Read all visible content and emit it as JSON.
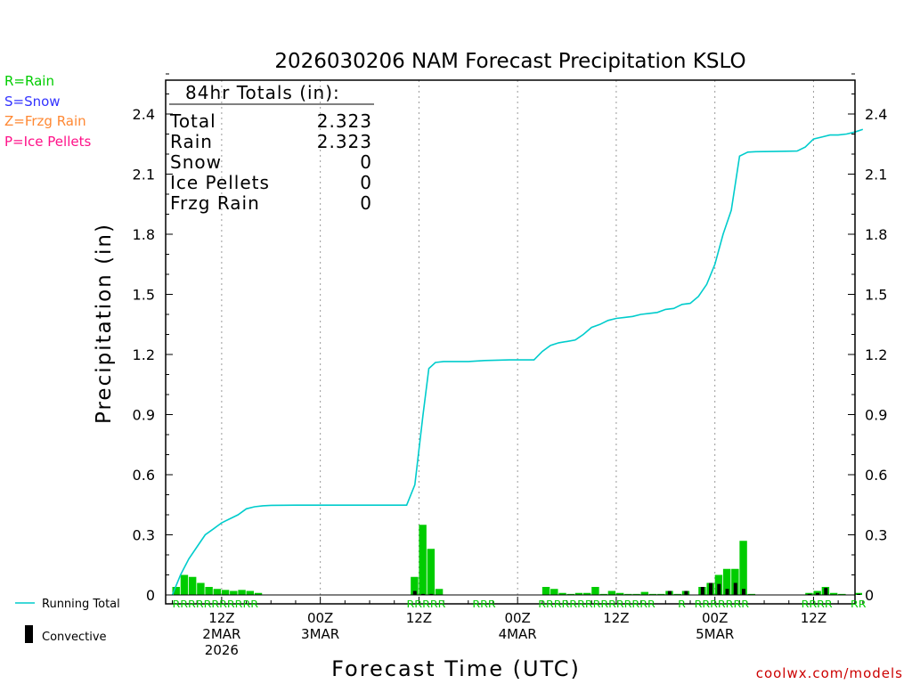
{
  "legend": {
    "rain": "R=Rain",
    "snow": "S=Snow",
    "frzg_rain": "Z=Frzg Rain",
    "ice_pellets": "P=Ice Pellets",
    "running_total": "Running Total",
    "convective": "Convective"
  },
  "totals_box": {
    "heading": "84hr Totals (in):",
    "rows": [
      {
        "label": "Total",
        "value": "2.323"
      },
      {
        "label": "Rain",
        "value": "2.323"
      },
      {
        "label": "Snow",
        "value": "0"
      },
      {
        "label": "Ice Pellets",
        "value": "0"
      },
      {
        "label": "Frzg Rain",
        "value": "0"
      }
    ]
  },
  "credit": "coolwx.com/models",
  "colors": {
    "rain": "#00cc00",
    "snow": "#3333ff",
    "frzg_rain": "#ff8833",
    "ice_pellets": "#ff1188",
    "running_total": "#00cccc",
    "convective": "#000000",
    "credit": "#cc0000"
  },
  "chart_data": {
    "type": "bar",
    "title": "2026030206 NAM Forecast Precipitation KSLO",
    "xlabel": "Forecast Time (UTC)",
    "ylabel": "Precipitation (in)",
    "ylim": [
      -0.04,
      2.55
    ],
    "yticks": [
      0,
      0.3,
      0.6,
      0.9,
      1.2,
      1.5,
      1.8,
      2.1,
      2.4
    ],
    "ytick_labels": [
      "0",
      "0.3",
      "0.6",
      "0.9",
      "1.2",
      "1.5",
      "1.8",
      "2.1",
      "2.4"
    ],
    "xlim_hours": [
      0,
      84
    ],
    "x_ticks": [
      {
        "hour": 6,
        "label": [
          "12Z",
          "2MAR",
          "2026"
        ]
      },
      {
        "hour": 18,
        "label": [
          "00Z",
          "3MAR"
        ]
      },
      {
        "hour": 30,
        "label": [
          "12Z"
        ]
      },
      {
        "hour": 42,
        "label": [
          "00Z",
          "4MAR"
        ]
      },
      {
        "hour": 54,
        "label": [
          "12Z"
        ]
      },
      {
        "hour": 66,
        "label": [
          "00Z",
          "5MAR"
        ]
      },
      {
        "hour": 78,
        "label": [
          "12Z"
        ]
      }
    ],
    "hourly_precip_in": [
      0.04,
      0.1,
      0.09,
      0.06,
      0.04,
      0.03,
      0.025,
      0.02,
      0.025,
      0.02,
      0.01,
      0,
      0,
      0,
      0,
      0,
      0,
      0,
      0,
      0,
      0,
      0,
      0,
      0,
      0,
      0,
      0,
      0,
      0,
      0.09,
      0.35,
      0.23,
      0.03,
      0,
      0,
      0,
      0,
      0,
      0,
      0,
      0,
      0,
      0,
      0,
      0,
      0.04,
      0.03,
      0.01,
      0.005,
      0.01,
      0.01,
      0.04,
      0.005,
      0.02,
      0.01,
      0.005,
      0.005,
      0.015,
      0.005,
      0.005,
      0.02,
      0.005,
      0.02,
      0,
      0.04,
      0.06,
      0.1,
      0.13,
      0.13,
      0.27,
      0.005,
      0,
      0,
      0,
      0,
      0,
      0,
      0.01,
      0.02,
      0.04,
      0.01,
      0.005,
      0,
      0.01
    ],
    "hourly_convective_in": [
      0,
      0,
      0,
      0,
      0,
      0,
      0,
      0,
      0,
      0,
      0,
      0,
      0,
      0,
      0,
      0,
      0,
      0,
      0,
      0,
      0,
      0,
      0,
      0,
      0,
      0,
      0,
      0,
      0,
      0.02,
      0.005,
      0.005,
      0,
      0,
      0,
      0,
      0,
      0,
      0,
      0,
      0,
      0,
      0,
      0,
      0,
      0,
      0,
      0,
      0,
      0,
      0,
      0,
      0,
      0,
      0,
      0,
      0,
      0,
      0,
      0,
      0.02,
      0,
      0.02,
      0,
      0.04,
      0.06,
      0.055,
      0.03,
      0.06,
      0.03,
      0,
      0,
      0,
      0,
      0,
      0,
      0,
      0.005,
      0.01,
      0.035,
      0,
      0,
      0,
      0.005
    ],
    "running_total_in": [
      [
        0,
        0
      ],
      [
        1,
        0.1
      ],
      [
        2,
        0.18
      ],
      [
        3,
        0.24
      ],
      [
        4,
        0.3
      ],
      [
        5,
        0.33
      ],
      [
        6,
        0.36
      ],
      [
        7,
        0.38
      ],
      [
        8,
        0.4
      ],
      [
        9,
        0.43
      ],
      [
        10,
        0.44
      ],
      [
        11,
        0.445
      ],
      [
        12,
        0.447
      ],
      [
        15,
        0.448
      ],
      [
        20,
        0.448
      ],
      [
        25,
        0.448
      ],
      [
        28.5,
        0.448
      ],
      [
        29.5,
        0.55
      ],
      [
        30.5,
        0.9
      ],
      [
        31.2,
        1.13
      ],
      [
        32,
        1.16
      ],
      [
        33,
        1.165
      ],
      [
        36,
        1.165
      ],
      [
        38,
        1.17
      ],
      [
        41,
        1.173
      ],
      [
        44,
        1.173
      ],
      [
        45,
        1.215
      ],
      [
        46,
        1.245
      ],
      [
        47,
        1.258
      ],
      [
        48,
        1.265
      ],
      [
        49,
        1.272
      ],
      [
        50,
        1.3
      ],
      [
        51,
        1.335
      ],
      [
        52,
        1.35
      ],
      [
        53,
        1.37
      ],
      [
        54,
        1.38
      ],
      [
        55,
        1.385
      ],
      [
        56,
        1.39
      ],
      [
        57,
        1.4
      ],
      [
        58,
        1.405
      ],
      [
        59,
        1.41
      ],
      [
        60,
        1.425
      ],
      [
        61,
        1.43
      ],
      [
        62,
        1.45
      ],
      [
        63,
        1.455
      ],
      [
        64,
        1.49
      ],
      [
        65,
        1.55
      ],
      [
        66,
        1.65
      ],
      [
        67,
        1.8
      ],
      [
        68,
        1.92
      ],
      [
        69,
        2.19
      ],
      [
        70,
        2.21
      ],
      [
        71,
        2.212
      ],
      [
        73,
        2.213
      ],
      [
        76,
        2.215
      ],
      [
        77,
        2.235
      ],
      [
        78,
        2.275
      ],
      [
        79,
        2.285
      ],
      [
        80,
        2.295
      ],
      [
        81,
        2.295
      ],
      [
        82,
        2.3
      ],
      [
        83,
        2.31
      ],
      [
        84,
        2.323
      ]
    ],
    "ptype_rows": [
      {
        "start_hour": 0,
        "text": "RRRRRRRRRRR"
      },
      {
        "start_hour": 28.5,
        "text": "RRRRR"
      },
      {
        "start_hour": 36.5,
        "text": "RRR"
      },
      {
        "start_hour": 44.5,
        "text": "RRRRRRRRRRRRRRR"
      },
      {
        "start_hour": 61.5,
        "text": "R"
      },
      {
        "start_hour": 63.5,
        "text": "RRRRRRR"
      },
      {
        "start_hour": 76.5,
        "text": "RRRR"
      },
      {
        "start_hour": 82.5,
        "text": "RR"
      }
    ]
  }
}
